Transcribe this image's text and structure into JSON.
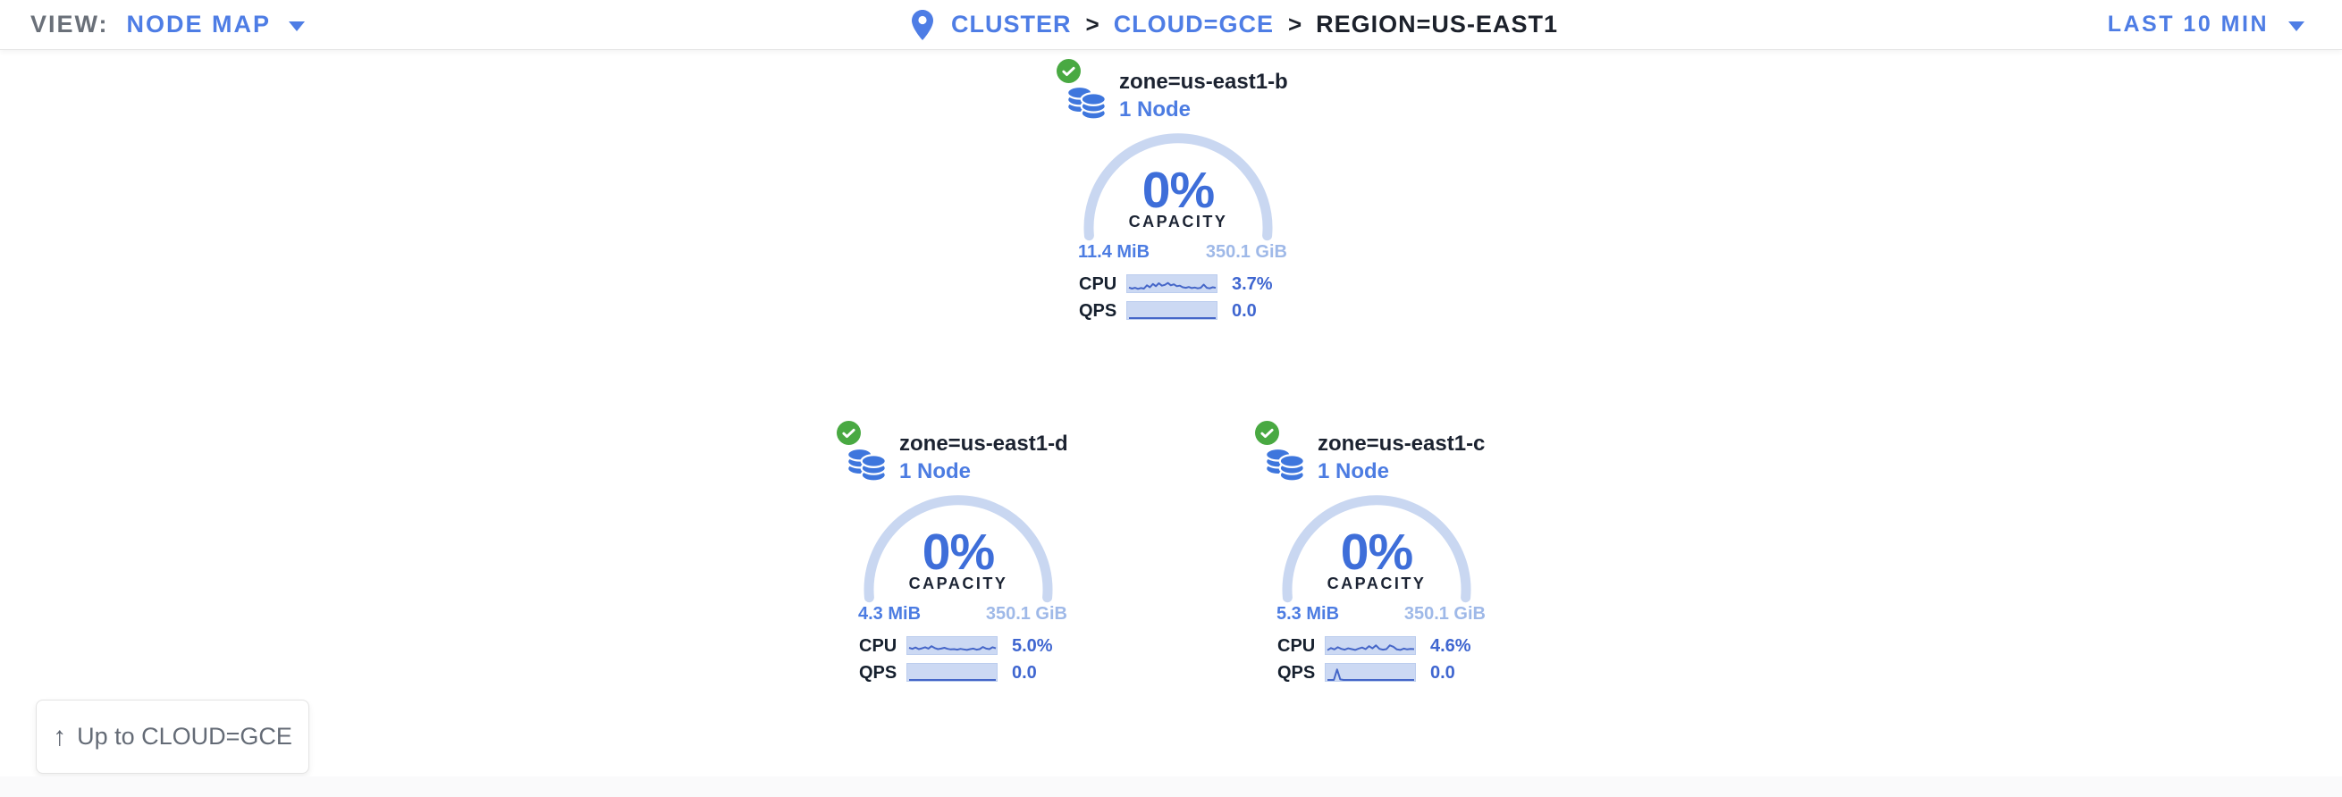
{
  "toolbar": {
    "view_label": "VIEW:",
    "view_value": "NODE MAP",
    "time_range": "LAST 10 MIN"
  },
  "breadcrumb": {
    "separator": ">",
    "items": [
      {
        "label": "CLUSTER"
      },
      {
        "label": "CLOUD=GCE"
      },
      {
        "label": "REGION=US-EAST1"
      }
    ]
  },
  "cards": [
    {
      "title": "zone=us-east1-b",
      "subtitle": "1 Node",
      "status": "healthy",
      "capacity_pct": "0%",
      "capacity_label": "CAPACITY",
      "used": "11.4 MiB",
      "total": "350.1 GiB",
      "cpu_label": "CPU",
      "cpu_value": "3.7%",
      "qps_label": "QPS",
      "qps_value": "0.0",
      "cpu_spark": [
        28,
        20,
        26,
        18,
        24,
        20,
        45,
        30,
        55,
        38,
        60,
        42,
        48,
        62,
        45,
        52,
        38,
        42,
        30,
        26,
        32,
        24,
        28,
        22,
        26,
        50,
        26,
        22,
        30,
        26
      ],
      "qps_spark": [
        0,
        0,
        0,
        0,
        0,
        0,
        0,
        0,
        0,
        0,
        0,
        0,
        0,
        0,
        0,
        0,
        0,
        0,
        0,
        0,
        0,
        0,
        0,
        0,
        0,
        0,
        0,
        0
      ]
    },
    {
      "title": "zone=us-east1-d",
      "subtitle": "1 Node",
      "status": "healthy",
      "capacity_pct": "0%",
      "capacity_label": "CAPACITY",
      "used": "4.3 MiB",
      "total": "350.1 GiB",
      "cpu_label": "CPU",
      "cpu_value": "5.0%",
      "qps_label": "QPS",
      "qps_value": "0.0",
      "cpu_spark": [
        40,
        32,
        42,
        30,
        36,
        44,
        34,
        52,
        38,
        30,
        34,
        40,
        32,
        28,
        30,
        26,
        32,
        28,
        24,
        30,
        34,
        26,
        30,
        46,
        34,
        30,
        44,
        36
      ],
      "qps_spark": [
        0,
        0,
        0,
        0,
        0,
        0,
        0,
        0,
        0,
        0,
        0,
        0,
        0,
        0,
        0,
        0,
        0,
        0,
        0,
        0,
        0,
        0,
        0,
        0,
        0,
        0,
        0,
        0
      ]
    },
    {
      "title": "zone=us-east1-c",
      "subtitle": "1 Node",
      "status": "healthy",
      "capacity_pct": "0%",
      "capacity_label": "CAPACITY",
      "used": "5.3 MiB",
      "total": "350.1 GiB",
      "cpu_label": "CPU",
      "cpu_value": "4.6%",
      "qps_label": "QPS",
      "qps_value": "0.0",
      "cpu_spark": [
        22,
        38,
        28,
        44,
        32,
        26,
        36,
        30,
        24,
        34,
        42,
        30,
        52,
        36,
        58,
        32,
        26,
        30,
        58,
        48,
        28,
        24,
        34,
        28,
        32,
        30
      ],
      "qps_spark": [
        0,
        0,
        0,
        78,
        4,
        0,
        0,
        0,
        0,
        0,
        0,
        0,
        0,
        0,
        0,
        0,
        0,
        0,
        0,
        0,
        0,
        0,
        0,
        0,
        0,
        0,
        0,
        0
      ]
    }
  ],
  "up_button": {
    "arrow": "↑",
    "label": "Up to CLOUD=GCE"
  },
  "colors": {
    "accent_blue": "#4e7de5",
    "number_blue": "#3f66d0",
    "arc_blue": "#c9d7f1",
    "pale_blue": "#9fb9e8",
    "status_green": "#49a942",
    "dark_text": "#1c2434"
  }
}
